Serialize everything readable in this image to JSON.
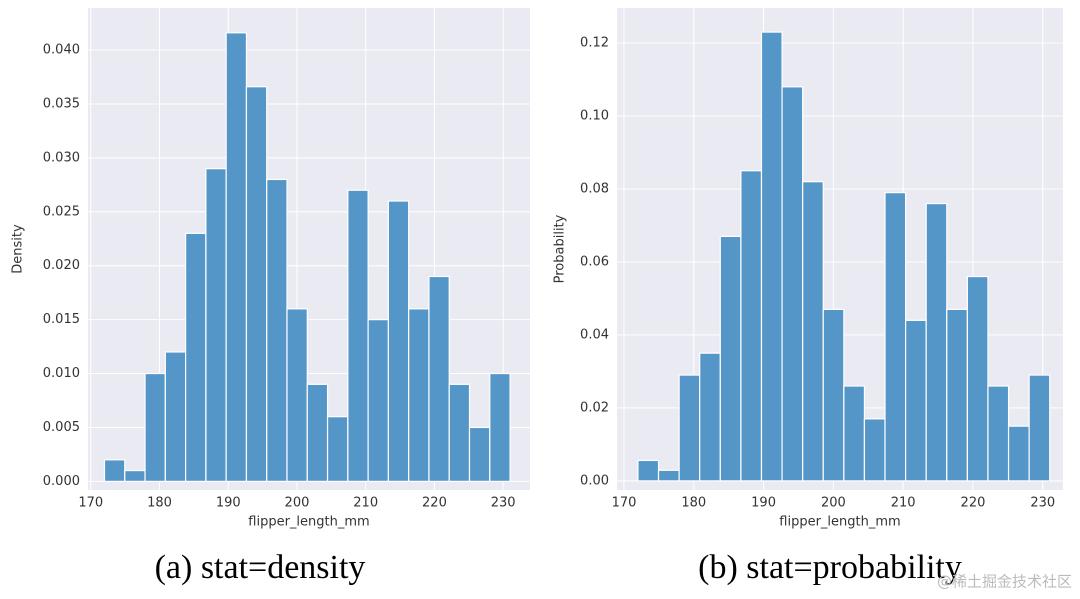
{
  "chart_data": [
    {
      "type": "histogram",
      "caption": "(a) stat=density",
      "xlabel": "flipper_length_mm",
      "ylabel": "Density",
      "bins": [
        172,
        174.95,
        177.9,
        180.85,
        183.8,
        186.75,
        189.7,
        192.65,
        195.6,
        198.55,
        201.5,
        204.45,
        207.4,
        210.35,
        213.3,
        216.25,
        219.2,
        222.15,
        225.1,
        228.05,
        231
      ],
      "values": [
        0.002,
        0.001,
        0.01,
        0.012,
        0.023,
        0.029,
        0.0416,
        0.0366,
        0.028,
        0.016,
        0.009,
        0.006,
        0.027,
        0.015,
        0.026,
        0.016,
        0.019,
        0.009,
        0.005,
        0.01
      ],
      "color": "#5496c8",
      "grid": true,
      "xlim": [
        169.6,
        233.9
      ],
      "xticks": [
        170,
        180,
        190,
        200,
        210,
        220,
        230
      ],
      "ylim": [
        -0.0008,
        0.0439
      ],
      "yticks": [
        {
          "value": 0,
          "label": "0.000"
        },
        {
          "value": 0.005,
          "label": "0.005"
        },
        {
          "value": 0.01,
          "label": "0.010"
        },
        {
          "value": 0.015,
          "label": "0.015"
        },
        {
          "value": 0.02,
          "label": "0.020"
        },
        {
          "value": 0.025,
          "label": "0.025"
        },
        {
          "value": 0.03,
          "label": "0.030"
        },
        {
          "value": 0.035,
          "label": "0.035"
        },
        {
          "value": 0.04,
          "label": "0.040"
        }
      ]
    },
    {
      "type": "histogram",
      "caption": "(b) stat=probability",
      "xlabel": "flipper_length_mm",
      "ylabel": "Probability",
      "bins": [
        172,
        174.95,
        177.9,
        180.85,
        183.8,
        186.75,
        189.7,
        192.65,
        195.6,
        198.55,
        201.5,
        204.45,
        207.4,
        210.35,
        213.3,
        216.25,
        219.2,
        222.15,
        225.1,
        228.05,
        231
      ],
      "values": [
        0.0056,
        0.0029,
        0.029,
        0.035,
        0.067,
        0.085,
        0.123,
        0.108,
        0.082,
        0.047,
        0.026,
        0.017,
        0.079,
        0.044,
        0.076,
        0.047,
        0.056,
        0.026,
        0.015,
        0.029
      ],
      "color": "#5496c8",
      "grid": true,
      "xlim": [
        169.0,
        232.9
      ],
      "xticks": [
        170,
        180,
        190,
        200,
        210,
        220,
        230
      ],
      "ylim": [
        -0.0025,
        0.1296
      ],
      "yticks": [
        {
          "value": 0,
          "label": "0.00"
        },
        {
          "value": 0.02,
          "label": "0.02"
        },
        {
          "value": 0.04,
          "label": "0.04"
        },
        {
          "value": 0.06,
          "label": "0.06"
        },
        {
          "value": 0.08,
          "label": "0.08"
        },
        {
          "value": 0.1,
          "label": "0.10"
        },
        {
          "value": 0.12,
          "label": "0.12"
        }
      ]
    }
  ],
  "watermark": "@稀土掘金技术社区"
}
